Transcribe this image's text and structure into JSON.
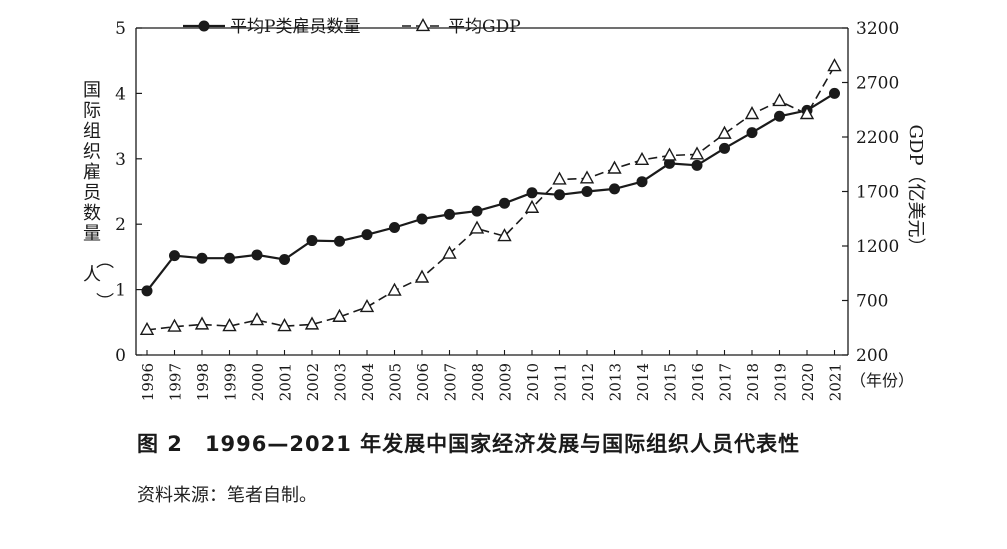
{
  "chart_data": {
    "type": "line",
    "x": [
      1996,
      1997,
      1998,
      1999,
      2000,
      2001,
      2002,
      2003,
      2004,
      2005,
      2006,
      2007,
      2008,
      2009,
      2010,
      2011,
      2012,
      2013,
      2014,
      2015,
      2016,
      2017,
      2018,
      2019,
      2020,
      2021
    ],
    "x_unit_label": "（年份）",
    "y_left": {
      "label": "国际组织雇员数量（人）",
      "ticks": [
        0,
        1,
        2,
        3,
        4,
        5
      ],
      "lim": [
        0,
        5
      ]
    },
    "y_right": {
      "label": "GDP（亿美元）",
      "ticks": [
        200,
        700,
        1200,
        1700,
        2200,
        2700,
        3200
      ],
      "lim": [
        200,
        3200
      ]
    },
    "series": [
      {
        "name": "平均P类雇员数量",
        "axis": "left",
        "style": "solid",
        "marker": "circle",
        "values": [
          0.98,
          1.52,
          1.48,
          1.48,
          1.53,
          1.46,
          1.75,
          1.74,
          1.84,
          1.95,
          2.08,
          2.15,
          2.2,
          2.32,
          2.48,
          2.45,
          2.5,
          2.54,
          2.65,
          2.93,
          2.9,
          3.16,
          3.4,
          3.65,
          3.74,
          4.0
        ]
      },
      {
        "name": "平均GDP",
        "axis": "right",
        "style": "dashed",
        "marker": "triangle",
        "values": [
          430,
          460,
          480,
          465,
          520,
          465,
          480,
          550,
          640,
          790,
          910,
          1130,
          1360,
          1290,
          1550,
          1810,
          1820,
          1910,
          1990,
          2030,
          2040,
          2230,
          2410,
          2530,
          2410,
          2850
        ]
      }
    ],
    "grid": false,
    "legend": "top-left"
  },
  "caption": {
    "figure_no": "图 2",
    "title": "1996—2021 年发展中国家经济发展与国际组织人员代表性"
  },
  "source": "资料来源：笔者自制。"
}
